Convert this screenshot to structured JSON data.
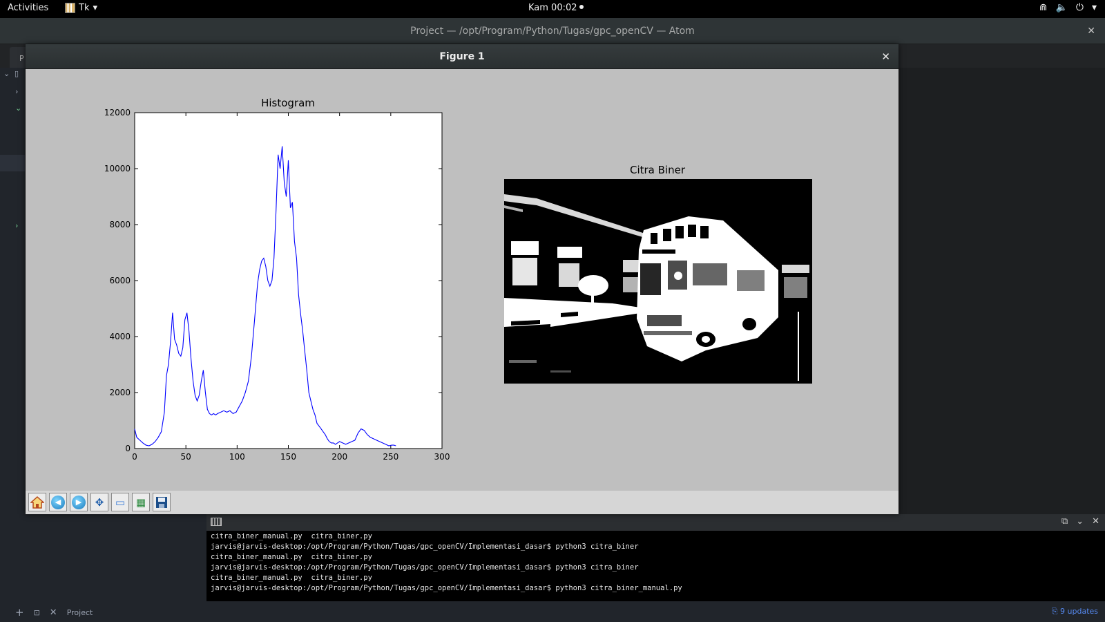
{
  "topbar": {
    "activities": "Activities",
    "app_name": "Tk",
    "clock": "Kam 00:02"
  },
  "atom": {
    "title": "Project — /opt/Program/Python/Tugas/gpc_openCV — Atom",
    "tab_label": "P"
  },
  "figure": {
    "title": "Figure 1",
    "histogram_title": "Histogram",
    "image_title": "Citra Biner",
    "toolbar": [
      "home-icon",
      "back-icon",
      "forward-icon",
      "pan-icon",
      "zoom-icon",
      "configure-subplots-icon",
      "save-icon"
    ]
  },
  "chart_data": {
    "type": "line",
    "title": "Histogram",
    "xlim": [
      0,
      300
    ],
    "ylim": [
      0,
      12000
    ],
    "xticks": [
      0,
      50,
      100,
      150,
      200,
      250,
      300
    ],
    "yticks": [
      0,
      2000,
      4000,
      6000,
      8000,
      10000,
      12000
    ],
    "series": [
      {
        "color": "#0000ff",
        "x": [
          0,
          2,
          5,
          8,
          11,
          14,
          17,
          20,
          23,
          26,
          29,
          31,
          33,
          35,
          37,
          39,
          41,
          43,
          45,
          47,
          49,
          51,
          53,
          55,
          57,
          59,
          61,
          63,
          65,
          67,
          69,
          71,
          73,
          75,
          77,
          79,
          81,
          84,
          87,
          90,
          93,
          96,
          99,
          102,
          105,
          108,
          111,
          114,
          117,
          120,
          122,
          124,
          126,
          128,
          130,
          132,
          134,
          136,
          138,
          140,
          142,
          144,
          146,
          148,
          150,
          152,
          154,
          156,
          158,
          160,
          162,
          164,
          166,
          168,
          170,
          172,
          174,
          176,
          178,
          180,
          182,
          184,
          186,
          188,
          190,
          192,
          194,
          196,
          198,
          200,
          203,
          206,
          209,
          212,
          215,
          218,
          221,
          224,
          227,
          230,
          233,
          236,
          239,
          242,
          245,
          248,
          251,
          253,
          255
        ],
        "y": [
          700,
          400,
          300,
          200,
          120,
          100,
          150,
          250,
          400,
          600,
          1300,
          2600,
          3000,
          3800,
          4850,
          3900,
          3700,
          3400,
          3300,
          3600,
          4600,
          4850,
          4200,
          3200,
          2400,
          1900,
          1700,
          1900,
          2400,
          2800,
          2000,
          1400,
          1250,
          1200,
          1250,
          1200,
          1250,
          1300,
          1350,
          1300,
          1350,
          1250,
          1300,
          1500,
          1700,
          2000,
          2400,
          3300,
          4600,
          5900,
          6400,
          6700,
          6800,
          6500,
          6000,
          5800,
          6000,
          6800,
          8500,
          10500,
          10000,
          10800,
          9500,
          9000,
          10300,
          8600,
          8800,
          7400,
          6800,
          5500,
          4800,
          4200,
          3500,
          2800,
          2000,
          1700,
          1400,
          1200,
          900,
          800,
          700,
          600,
          500,
          350,
          250,
          200,
          200,
          150,
          200,
          250,
          200,
          150,
          200,
          250,
          300,
          550,
          700,
          650,
          500,
          400,
          350,
          300,
          250,
          200,
          150,
          100,
          120,
          120,
          100
        ]
      }
    ]
  },
  "terminal": {
    "lines": [
      "citra_biner_manual.py  citra_biner.py",
      "jarvis@jarvis-desktop:/opt/Program/Python/Tugas/gpc_openCV/Implementasi_dasar$ python3 citra_biner",
      "citra_biner_manual.py  citra_biner.py",
      "jarvis@jarvis-desktop:/opt/Program/Python/Tugas/gpc_openCV/Implementasi_dasar$ python3 citra_biner",
      "citra_biner_manual.py  citra_biner.py",
      "jarvis@jarvis-desktop:/opt/Program/Python/Tugas/gpc_openCV/Implementasi_dasar$ python3 citra_biner_manual.py"
    ]
  },
  "status": {
    "project": "Project",
    "updates": "9 updates"
  }
}
